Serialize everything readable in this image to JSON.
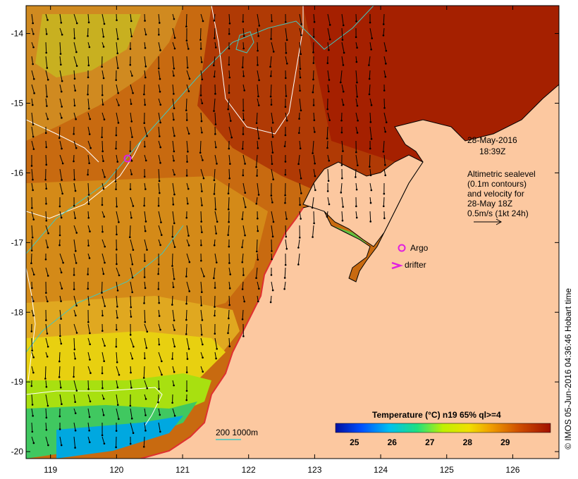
{
  "map": {
    "lon_range": [
      118.63,
      126.7
    ],
    "lat_range": [
      -20.1,
      -13.6
    ],
    "lon_ticks": [
      "119",
      "120",
      "121",
      "122",
      "123",
      "124",
      "125",
      "126"
    ],
    "lat_ticks": [
      "-14",
      "-15",
      "-16",
      "-17",
      "-18",
      "-19",
      "-20"
    ]
  },
  "annotations": {
    "date": "28-May-2016",
    "time": "18:39Z",
    "alt_line1": "Altimetric sealevel",
    "alt_line2": "(0.1m contours)",
    "alt_line3": "and velocity for",
    "alt_line4": "28-May 18Z",
    "alt_line5": "0.5m/s (1kt 24h)",
    "argo_label": "Argo",
    "drifter_label": "drifter",
    "depth_label": "200  1000m",
    "credit": "© IMOS 05-Jun-2016 04:36:46 Hobart time"
  },
  "colorbar": {
    "title": "Temperature (°C) n19 65% ql>=4",
    "ticks": [
      "25",
      "26",
      "27",
      "28",
      "29"
    ],
    "range": [
      24.5,
      30.2
    ]
  },
  "colors": {
    "land": "#fcc8a0",
    "hot": "#a31800",
    "warm": "#c55000",
    "mid": "#d9820b",
    "cool": "#f0c000",
    "yellow": "#e8e800",
    "green": "#40d040",
    "cyan": "#00c0e0",
    "contour_white": "#ffffff",
    "contour_cyan": "#40c8c0",
    "argo": "#e020e0"
  }
}
